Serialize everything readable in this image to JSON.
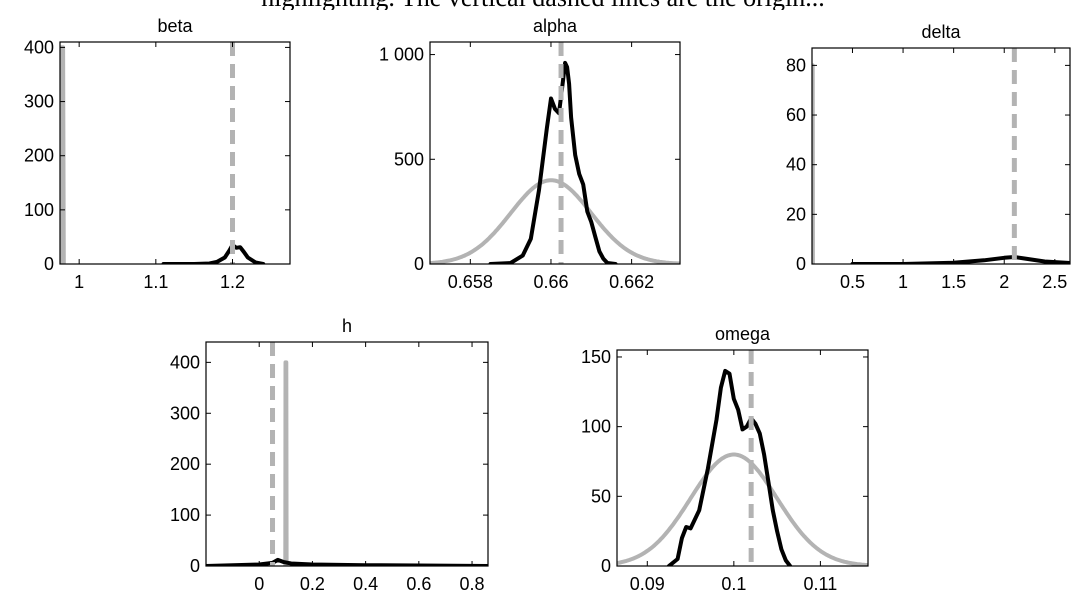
{
  "figure": {
    "cut_off_header": "highlighting. The vertical dashed lines are the origin...",
    "colors": {
      "posterior": "#000000",
      "prior": "#b3b3b3",
      "true_value": "#b3b3b3",
      "axes": "#000000"
    }
  },
  "chart_data": [
    {
      "id": "beta",
      "type": "line",
      "title": "beta",
      "xlim": [
        0.975,
        1.275
      ],
      "ylim": [
        0,
        410
      ],
      "xticks": [
        1,
        1.1,
        1.2
      ],
      "xticklabels": [
        "1",
        "1.1",
        "1.2"
      ],
      "yticks": [
        0,
        100,
        200,
        300,
        400
      ],
      "yticklabels": [
        "0",
        "100",
        "200",
        "300",
        "400"
      ],
      "true_value": 1.2,
      "series": [
        {
          "role": "prior",
          "x": [
            0.975,
            0.976,
            0.977,
            0.978,
            0.979,
            0.98
          ],
          "y": [
            0,
            400,
            400,
            400,
            400,
            0
          ]
        },
        {
          "role": "posterior",
          "x": [
            1.11,
            1.15,
            1.17,
            1.18,
            1.19,
            1.196,
            1.2,
            1.205,
            1.21,
            1.215,
            1.22,
            1.23,
            1.24
          ],
          "y": [
            0,
            0,
            1,
            4,
            12,
            25,
            35,
            30,
            31,
            22,
            12,
            3,
            0
          ]
        }
      ]
    },
    {
      "id": "alpha",
      "type": "line",
      "title": "alpha",
      "xlim": [
        0.657,
        0.6632
      ],
      "ylim": [
        0,
        1060
      ],
      "xticks": [
        0.658,
        0.66,
        0.662
      ],
      "xticklabels": [
        "0.658",
        "0.66",
        "0.662"
      ],
      "yticks": [
        0,
        500,
        1000
      ],
      "yticklabels": [
        "0",
        "500",
        "1 000"
      ],
      "true_value": 0.66025,
      "series": [
        {
          "role": "prior",
          "normal": {
            "mean": 0.66,
            "sd": 0.001,
            "scale": 400
          }
        },
        {
          "role": "posterior",
          "x": [
            0.6585,
            0.659,
            0.6593,
            0.6595,
            0.6597,
            0.6599,
            0.66,
            0.6601,
            0.6602,
            0.6603,
            0.66035,
            0.6604,
            0.66045,
            0.6605,
            0.6606,
            0.6607,
            0.6608,
            0.6609,
            0.661,
            0.6611,
            0.6612,
            0.6613,
            0.6614,
            0.6616
          ],
          "y": [
            0,
            5,
            40,
            120,
            350,
            650,
            790,
            740,
            720,
            880,
            960,
            940,
            860,
            700,
            520,
            430,
            380,
            250,
            200,
            130,
            60,
            25,
            5,
            0
          ]
        }
      ]
    },
    {
      "id": "delta",
      "type": "line",
      "title": "delta",
      "xlim": [
        0.1,
        2.65
      ],
      "ylim": [
        0,
        87
      ],
      "xticks": [
        0.5,
        1,
        1.5,
        2,
        2.5
      ],
      "xticklabels": [
        "0.5",
        "1",
        "1.5",
        "2",
        "2.5"
      ],
      "yticks": [
        0,
        20,
        40,
        60,
        80
      ],
      "yticklabels": [
        "0",
        "20",
        "40",
        "60",
        "80"
      ],
      "true_value": 2.1,
      "series": [
        {
          "role": "prior",
          "x": [
            0.1,
            0.101,
            0.103,
            0.105,
            0.107,
            0.109
          ],
          "y": [
            0,
            80,
            80,
            80,
            80,
            0
          ]
        },
        {
          "role": "posterior",
          "x": [
            0.5,
            1,
            1.5,
            1.8,
            2,
            2.1,
            2.2,
            2.4,
            2.65
          ],
          "y": [
            0,
            0,
            0.5,
            1.5,
            2.5,
            2.8,
            2.2,
            1,
            0.4
          ]
        }
      ]
    },
    {
      "id": "h",
      "type": "line",
      "title": "h",
      "xlim": [
        -0.2,
        0.86
      ],
      "ylim": [
        0,
        440
      ],
      "xticks": [
        0,
        0.2,
        0.4,
        0.6,
        0.8
      ],
      "xticklabels": [
        "0",
        "0.2",
        "0.4",
        "0.6",
        "0.8"
      ],
      "yticks": [
        0,
        100,
        200,
        300,
        400
      ],
      "yticklabels": [
        "0",
        "100",
        "200",
        "300",
        "400"
      ],
      "true_value": 0.05,
      "series": [
        {
          "role": "prior",
          "x": [
            0.098,
            0.099,
            0.1,
            0.101,
            0.102,
            0.103
          ],
          "y": [
            0,
            400,
            400,
            400,
            400,
            0
          ]
        },
        {
          "role": "posterior",
          "x": [
            -0.2,
            0,
            0.05,
            0.07,
            0.09,
            0.12,
            0.2,
            0.4,
            0.6,
            0.86
          ],
          "y": [
            0,
            3,
            6,
            12,
            8,
            5,
            3,
            1.5,
            1,
            0
          ]
        }
      ]
    },
    {
      "id": "omega",
      "type": "line",
      "title": "omega",
      "xlim": [
        0.0865,
        0.1155
      ],
      "ylim": [
        0,
        155
      ],
      "xticks": [
        0.09,
        0.1,
        0.11
      ],
      "xticklabels": [
        "0.09",
        "0.1",
        "0.11"
      ],
      "yticks": [
        0,
        50,
        100,
        150
      ],
      "yticklabels": [
        "0",
        "50",
        "100",
        "150"
      ],
      "true_value": 0.102,
      "series": [
        {
          "role": "prior",
          "normal": {
            "mean": 0.1,
            "sd": 0.005,
            "scale": 80
          }
        },
        {
          "role": "posterior",
          "x": [
            0.0925,
            0.0935,
            0.094,
            0.0945,
            0.095,
            0.096,
            0.097,
            0.098,
            0.0985,
            0.099,
            0.0995,
            0.1,
            0.1005,
            0.101,
            0.1015,
            0.102,
            0.1025,
            0.103,
            0.1035,
            0.104,
            0.1045,
            0.105,
            0.1055,
            0.106,
            0.1065
          ],
          "y": [
            0,
            5,
            20,
            28,
            27,
            40,
            70,
            105,
            128,
            140,
            138,
            120,
            112,
            98,
            100,
            106,
            102,
            95,
            80,
            60,
            40,
            25,
            12,
            4,
            0
          ]
        }
      ]
    }
  ]
}
